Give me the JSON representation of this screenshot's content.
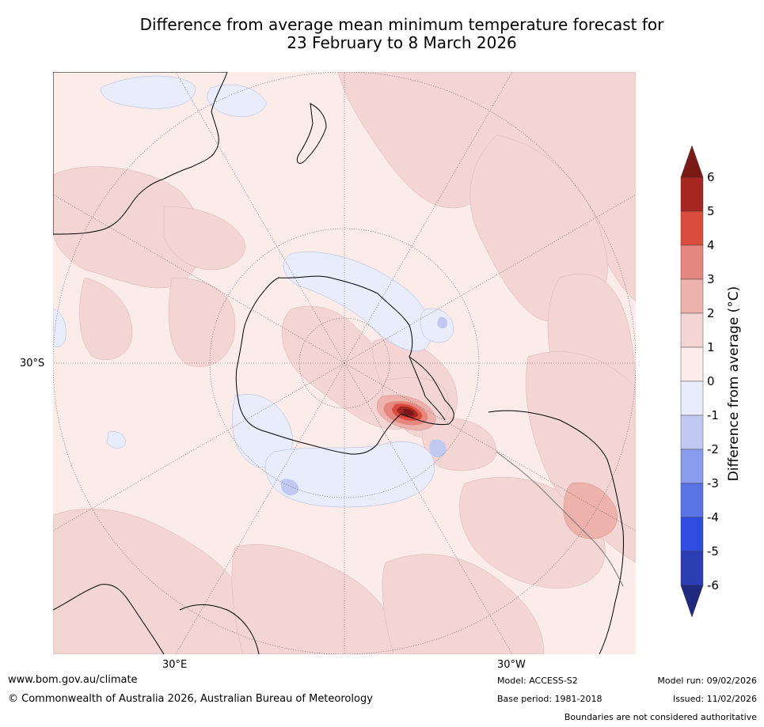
{
  "title": {
    "line1": "Difference from average mean minimum temperature forecast for",
    "line2": "23 February to 8 March 2026"
  },
  "map": {
    "projection": "south polar stereographic",
    "lat_label": "30°S",
    "lon_labels": [
      "30°E",
      "30°W"
    ],
    "palette": {
      "ocean_base": "#fbecea",
      "warm_1": "#f3d5d3",
      "warm_2": "#ecb2ab",
      "warm_3": "#e5877f",
      "warm_4": "#d94d3f",
      "warm_5": "#a82622",
      "warm_6": "#7a1a17",
      "cool_1": "#e8ecfb",
      "cool_2": "#c1c9f2",
      "coast": "#000000",
      "grid": "#444444"
    }
  },
  "colorbar": {
    "label": "Difference from average (°C)",
    "ticks": [
      "6",
      "5",
      "4",
      "3",
      "2",
      "1",
      "0",
      "-1",
      "-2",
      "-3",
      "-4",
      "-5",
      "-6"
    ],
    "bins": [
      {
        "range": ">6",
        "color": "#7a1a17"
      },
      {
        "range": "5 to 6",
        "color": "#a82622"
      },
      {
        "range": "4 to 5",
        "color": "#d94d3f"
      },
      {
        "range": "3 to 4",
        "color": "#e5877f"
      },
      {
        "range": "2 to 3",
        "color": "#ecb2ab"
      },
      {
        "range": "1 to 2",
        "color": "#f3d5d3"
      },
      {
        "range": "0 to 1",
        "color": "#fbecea"
      },
      {
        "range": "-1 to 0",
        "color": "#e8ecfb"
      },
      {
        "range": "-2 to -1",
        "color": "#c1c9f2"
      },
      {
        "range": "-3 to -2",
        "color": "#8a9cee"
      },
      {
        "range": "-4 to -3",
        "color": "#5a73e5"
      },
      {
        "range": "-5 to -4",
        "color": "#2f4ee0"
      },
      {
        "range": "-6 to -5",
        "color": "#2a3db3"
      },
      {
        "range": "<-6",
        "color": "#1f2a80"
      }
    ]
  },
  "footer": {
    "url": "www.bom.gov.au/climate",
    "copyright": "© Commonwealth of Australia 2026, Australian Bureau of Meteorology",
    "model": "Model: ACCESS-S2",
    "base_period": "Base period: 1981-2018",
    "model_run": "Model run: 09/02/2026",
    "issued": "Issued: 11/02/2026",
    "disclaimer": "Boundaries are not considered authoritative"
  }
}
